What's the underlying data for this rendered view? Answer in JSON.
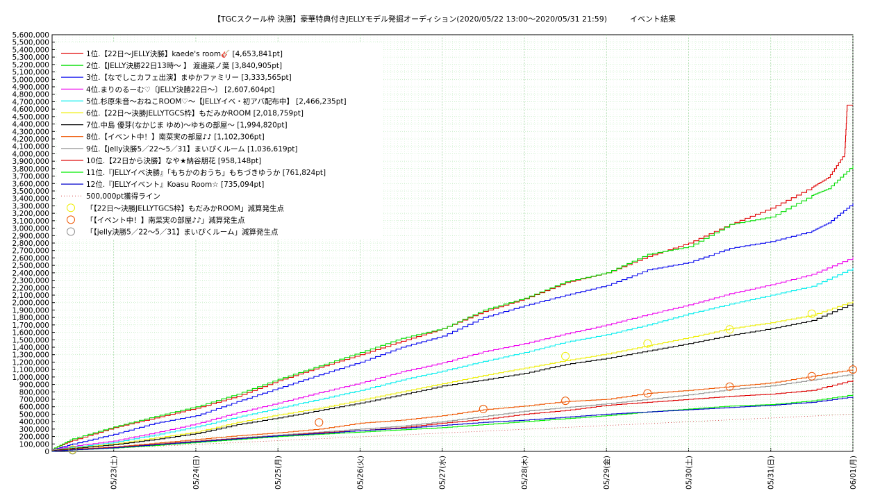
{
  "title": "【TGCスクール枠 決勝】豪華特典付きJELLYモデル発掘オーディション(2020/05/22 13:00〜2020/05/31 21:59)　　　イベント結果",
  "chart_data": {
    "type": "line",
    "title": "【TGCスクール枠 決勝】豪華特典付きJELLYモデル発掘オーディション(2020/05/22 13:00〜2020/05/31 21:59)　　　イベント結果",
    "xlabel": "",
    "ylabel": "",
    "ylim": [
      0,
      5600000
    ],
    "ytick_step": 100000,
    "x_ticks": [
      "05/23(土)",
      "05/24(日)",
      "05/25(月)",
      "05/26(火)",
      "05/27(水)",
      "05/28(木)",
      "05/29(金)",
      "05/30(土)",
      "05/31(日)",
      "06/01(月)"
    ],
    "x_unit": "day index (0 = 05/22 00:00, 1 = 05/23 00:00, ...)",
    "xlim": [
      0.25,
      10.0
    ],
    "grid": true,
    "legend_position": "top-left",
    "series": [
      {
        "name": "1位.【22日〜JELLY決勝】kaede's room🎸 [4,653,841pt]",
        "color": "#e00000",
        "points": [
          [
            0.25,
            30000
          ],
          [
            0.5,
            150000
          ],
          [
            1,
            320000
          ],
          [
            1.5,
            450000
          ],
          [
            2,
            580000
          ],
          [
            2.5,
            740000
          ],
          [
            3,
            950000
          ],
          [
            3.5,
            1130000
          ],
          [
            4,
            1300000
          ],
          [
            4.5,
            1480000
          ],
          [
            5,
            1650000
          ],
          [
            5.5,
            1880000
          ],
          [
            6,
            2050000
          ],
          [
            6.5,
            2270000
          ],
          [
            7,
            2400000
          ],
          [
            7.5,
            2620000
          ],
          [
            8,
            2800000
          ],
          [
            8.5,
            3050000
          ],
          [
            9,
            3270000
          ],
          [
            9.5,
            3550000
          ],
          [
            9.7,
            3680000
          ],
          [
            9.9,
            4000000
          ],
          [
            9.93,
            4653841
          ],
          [
            10,
            4653841
          ]
        ]
      },
      {
        "name": "2位.【JELLY決勝22日13時〜 】 渡邉菜ノ葉 [3,840,905pt]",
        "color": "#00dd00",
        "points": [
          [
            0.25,
            30000
          ],
          [
            0.5,
            170000
          ],
          [
            1,
            330000
          ],
          [
            1.5,
            470000
          ],
          [
            2,
            600000
          ],
          [
            2.5,
            770000
          ],
          [
            3,
            970000
          ],
          [
            3.5,
            1150000
          ],
          [
            4,
            1330000
          ],
          [
            4.5,
            1520000
          ],
          [
            5,
            1650000
          ],
          [
            5.5,
            1900000
          ],
          [
            6,
            2060000
          ],
          [
            6.5,
            2280000
          ],
          [
            7,
            2400000
          ],
          [
            7.5,
            2650000
          ],
          [
            8,
            2750000
          ],
          [
            8.5,
            3050000
          ],
          [
            9,
            3150000
          ],
          [
            9.5,
            3440000
          ],
          [
            9.7,
            3530000
          ],
          [
            10,
            3840905
          ]
        ]
      },
      {
        "name": "3位.【なでしこカフェ出演】まゆかファミリー [3,333,565pt]",
        "color": "#0000ee",
        "points": [
          [
            0.25,
            20000
          ],
          [
            0.5,
            100000
          ],
          [
            1,
            230000
          ],
          [
            1.5,
            380000
          ],
          [
            2,
            480000
          ],
          [
            2.5,
            670000
          ],
          [
            3,
            850000
          ],
          [
            3.5,
            1030000
          ],
          [
            4,
            1200000
          ],
          [
            4.5,
            1400000
          ],
          [
            5,
            1550000
          ],
          [
            5.5,
            1800000
          ],
          [
            6,
            1960000
          ],
          [
            6.5,
            2100000
          ],
          [
            7,
            2230000
          ],
          [
            7.5,
            2440000
          ],
          [
            8,
            2540000
          ],
          [
            8.5,
            2730000
          ],
          [
            9,
            2820000
          ],
          [
            9.5,
            2960000
          ],
          [
            9.7,
            3070000
          ],
          [
            10,
            3333565
          ]
        ]
      },
      {
        "name": "4位.まりのるーむ♡〔JELLY決勝22日〜〕 [2,607,604pt]",
        "color": "#ee00ee",
        "points": [
          [
            0.25,
            20000
          ],
          [
            0.5,
            70000
          ],
          [
            1,
            140000
          ],
          [
            1.5,
            250000
          ],
          [
            2,
            370000
          ],
          [
            2.5,
            520000
          ],
          [
            3,
            650000
          ],
          [
            3.5,
            790000
          ],
          [
            4,
            920000
          ],
          [
            4.5,
            1070000
          ],
          [
            5,
            1190000
          ],
          [
            5.5,
            1340000
          ],
          [
            6,
            1450000
          ],
          [
            6.5,
            1580000
          ],
          [
            7,
            1700000
          ],
          [
            7.5,
            1840000
          ],
          [
            8,
            1970000
          ],
          [
            8.5,
            2120000
          ],
          [
            9,
            2240000
          ],
          [
            9.5,
            2380000
          ],
          [
            10,
            2607604
          ]
        ]
      },
      {
        "name": "5位.杉原朱音〜おねこROOM♡〜【JELLYイベ・初アバ配布中】 [2,466,235pt]",
        "color": "#00eeee",
        "points": [
          [
            0.25,
            15000
          ],
          [
            0.5,
            55000
          ],
          [
            1,
            120000
          ],
          [
            1.5,
            220000
          ],
          [
            2,
            330000
          ],
          [
            2.5,
            460000
          ],
          [
            3,
            580000
          ],
          [
            3.5,
            700000
          ],
          [
            4,
            820000
          ],
          [
            4.5,
            960000
          ],
          [
            5,
            1080000
          ],
          [
            5.5,
            1210000
          ],
          [
            6,
            1330000
          ],
          [
            6.5,
            1470000
          ],
          [
            7,
            1570000
          ],
          [
            7.5,
            1700000
          ],
          [
            8,
            1850000
          ],
          [
            8.5,
            1980000
          ],
          [
            9,
            2100000
          ],
          [
            9.5,
            2220000
          ],
          [
            10,
            2466235
          ]
        ]
      },
      {
        "name": "6位.【22日〜決勝JELLYTGCS枠】もだみかROOM [2,018,759pt]",
        "color": "#eeee00",
        "points": [
          [
            0.25,
            15000
          ],
          [
            0.5,
            45000
          ],
          [
            1,
            100000
          ],
          [
            1.5,
            180000
          ],
          [
            2,
            260000
          ],
          [
            2.5,
            390000
          ],
          [
            3,
            490000
          ],
          [
            3.5,
            580000
          ],
          [
            4,
            690000
          ],
          [
            4.5,
            800000
          ],
          [
            5,
            910000
          ],
          [
            5.5,
            1020000
          ],
          [
            6,
            1120000
          ],
          [
            6.5,
            1220000
          ],
          [
            7,
            1310000
          ],
          [
            7.5,
            1420000
          ],
          [
            8,
            1530000
          ],
          [
            8.5,
            1650000
          ],
          [
            9,
            1730000
          ],
          [
            9.5,
            1830000
          ],
          [
            10,
            2018759
          ]
        ]
      },
      {
        "name": "7位.中島 優芽(なかじま ゆめ)〜ゆちの部屋〜 [1,994,820pt]",
        "color": "#000000",
        "points": [
          [
            0.25,
            10000
          ],
          [
            0.5,
            40000
          ],
          [
            1,
            90000
          ],
          [
            1.5,
            160000
          ],
          [
            2,
            240000
          ],
          [
            2.5,
            360000
          ],
          [
            3,
            450000
          ],
          [
            3.5,
            550000
          ],
          [
            4,
            650000
          ],
          [
            4.5,
            760000
          ],
          [
            5,
            880000
          ],
          [
            5.5,
            960000
          ],
          [
            6,
            1050000
          ],
          [
            6.5,
            1170000
          ],
          [
            7,
            1250000
          ],
          [
            7.5,
            1350000
          ],
          [
            8,
            1450000
          ],
          [
            8.5,
            1560000
          ],
          [
            9,
            1650000
          ],
          [
            9.5,
            1760000
          ],
          [
            10,
            1994820
          ]
        ]
      },
      {
        "name": "8位.【イベント中！】南菜実の部屋♪♪ [1,102,306pt]",
        "color": "#ee5500",
        "points": [
          [
            0.25,
            5000
          ],
          [
            0.5,
            30000
          ],
          [
            1,
            60000
          ],
          [
            1.5,
            110000
          ],
          [
            2,
            160000
          ],
          [
            2.5,
            210000
          ],
          [
            3,
            250000
          ],
          [
            3.5,
            300000
          ],
          [
            4,
            380000
          ],
          [
            4.5,
            420000
          ],
          [
            5,
            480000
          ],
          [
            5.5,
            560000
          ],
          [
            6,
            610000
          ],
          [
            6.5,
            670000
          ],
          [
            7,
            700000
          ],
          [
            7.5,
            780000
          ],
          [
            8,
            820000
          ],
          [
            8.5,
            870000
          ],
          [
            9,
            920000
          ],
          [
            9.5,
            1010000
          ],
          [
            10,
            1102306
          ]
        ]
      },
      {
        "name": "9位.【jelly決勝5／22〜5／31】まいぴくルーム [1,036,619pt]",
        "color": "#909090",
        "points": [
          [
            0.25,
            5000
          ],
          [
            0.5,
            25000
          ],
          [
            1,
            55000
          ],
          [
            1.5,
            100000
          ],
          [
            2,
            140000
          ],
          [
            2.5,
            180000
          ],
          [
            3,
            220000
          ],
          [
            3.5,
            260000
          ],
          [
            4,
            300000
          ],
          [
            4.5,
            340000
          ],
          [
            5,
            400000
          ],
          [
            5.5,
            470000
          ],
          [
            6,
            540000
          ],
          [
            6.5,
            590000
          ],
          [
            7,
            640000
          ],
          [
            7.5,
            700000
          ],
          [
            8,
            760000
          ],
          [
            8.5,
            830000
          ],
          [
            9,
            880000
          ],
          [
            9.5,
            960000
          ],
          [
            10,
            1036619
          ]
        ]
      },
      {
        "name": "10位.【22日から決勝】なや★納谷朋花 [958,148pt]",
        "color": "#dd0000",
        "points": [
          [
            0.25,
            5000
          ],
          [
            0.5,
            25000
          ],
          [
            1,
            55000
          ],
          [
            1.5,
            95000
          ],
          [
            2,
            135000
          ],
          [
            2.5,
            175000
          ],
          [
            3,
            210000
          ],
          [
            3.5,
            250000
          ],
          [
            4,
            280000
          ],
          [
            4.5,
            320000
          ],
          [
            5,
            380000
          ],
          [
            5.5,
            430000
          ],
          [
            6,
            500000
          ],
          [
            6.5,
            550000
          ],
          [
            7,
            620000
          ],
          [
            7.5,
            660000
          ],
          [
            8,
            700000
          ],
          [
            8.5,
            740000
          ],
          [
            9,
            770000
          ],
          [
            9.5,
            820000
          ],
          [
            10,
            958148
          ]
        ]
      },
      {
        "name": "11位.『JELLYイベ決勝』「もちかのおうち」もちづきゆうか [761,824pt]",
        "color": "#00ee00",
        "points": [
          [
            0.25,
            3000
          ],
          [
            0.5,
            20000
          ],
          [
            1,
            45000
          ],
          [
            1.5,
            80000
          ],
          [
            2,
            120000
          ],
          [
            2.5,
            160000
          ],
          [
            3,
            200000
          ],
          [
            3.5,
            230000
          ],
          [
            4,
            260000
          ],
          [
            4.5,
            290000
          ],
          [
            5,
            320000
          ],
          [
            5.5,
            360000
          ],
          [
            6,
            400000
          ],
          [
            6.5,
            440000
          ],
          [
            7,
            480000
          ],
          [
            7.5,
            530000
          ],
          [
            8,
            570000
          ],
          [
            8.5,
            610000
          ],
          [
            9,
            630000
          ],
          [
            9.5,
            680000
          ],
          [
            10,
            761824
          ]
        ]
      },
      {
        "name": "12位.『JELLYイベント』Koasu Room☆ [735,094pt]",
        "color": "#0000cc",
        "points": [
          [
            0.25,
            3000
          ],
          [
            0.5,
            20000
          ],
          [
            1,
            50000
          ],
          [
            1.5,
            90000
          ],
          [
            2,
            130000
          ],
          [
            2.5,
            170000
          ],
          [
            3,
            210000
          ],
          [
            3.5,
            240000
          ],
          [
            4,
            280000
          ],
          [
            4.5,
            310000
          ],
          [
            5,
            350000
          ],
          [
            5.5,
            390000
          ],
          [
            6,
            420000
          ],
          [
            6.5,
            460000
          ],
          [
            7,
            500000
          ],
          [
            7.5,
            530000
          ],
          [
            8,
            560000
          ],
          [
            8.5,
            590000
          ],
          [
            9,
            620000
          ],
          [
            9.5,
            660000
          ],
          [
            10,
            735094
          ]
        ]
      }
    ],
    "reference_line": {
      "name": "500,000pt獲得ライン",
      "color": "#cc3333",
      "points": [
        [
          0.25,
          5000
        ],
        [
          10,
          500000
        ]
      ]
    },
    "markers": [
      {
        "name": "「【22日〜決勝JELLYTGCS枠】もだみかROOM」減算発生点",
        "color": "#eeee00",
        "points": [
          [
            0.5,
            25000
          ],
          [
            6.5,
            1280000
          ],
          [
            7.5,
            1450000
          ],
          [
            8.5,
            1640000
          ],
          [
            9.5,
            1850000
          ]
        ]
      },
      {
        "name": "「【イベント中！】南菜実の部屋♪♪」減算発生点",
        "color": "#ee5500",
        "points": [
          [
            3.5,
            390000
          ],
          [
            5.5,
            570000
          ],
          [
            6.5,
            680000
          ],
          [
            7.5,
            780000
          ],
          [
            8.5,
            870000
          ],
          [
            9.5,
            1010000
          ],
          [
            10,
            1100000
          ]
        ]
      },
      {
        "name": "「【jelly決勝5／22〜5／31】まいぴくルーム」減算発生点",
        "color": "#909090",
        "points": [
          [
            0.5,
            15000
          ]
        ]
      }
    ]
  }
}
